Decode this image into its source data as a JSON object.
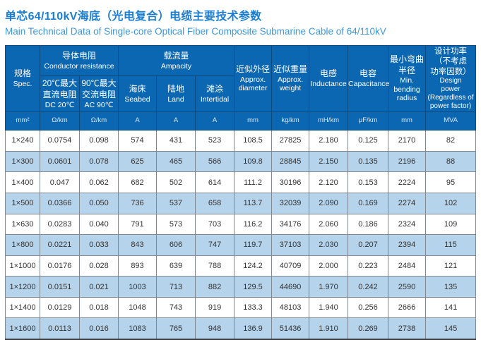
{
  "title": {
    "zh": "单芯64/110kV海底（光电复合）电缆主要技术参数",
    "en": "Main Technical Data of Single-core Optical Fiber Composite Submarine Cable of 64/110kV"
  },
  "colors": {
    "header_bg": "#0c67b2",
    "header_border": "#0d4a80",
    "alt_row_bg": "#b5d3eb",
    "title_zh": "#1b7ed2",
    "title_en": "#3d97dc"
  },
  "table": {
    "header": {
      "spec": {
        "zh": "规格",
        "en": "Spec."
      },
      "conductor_resistance": {
        "zh": "导体电阻",
        "en": "Conductor resistance"
      },
      "ampacity": {
        "zh": "载流量",
        "en": "Ampacity"
      },
      "dc_resistance": {
        "zh": "20℃最大\n直流电阻",
        "en": "DC 20℃"
      },
      "ac_resistance": {
        "zh": "90℃最大\n交流电阻",
        "en": "AC 90℃"
      },
      "seabed": {
        "zh": "海床",
        "en": "Seabed"
      },
      "land": {
        "zh": "陆地",
        "en": "Land"
      },
      "intertidal": {
        "zh": "滩涂",
        "en": "Intertidal"
      },
      "approx_diameter": {
        "zh": "近似外径",
        "en": "Approx.\ndiameter"
      },
      "approx_weight": {
        "zh": "近似重量",
        "en": "Approx.\nweight"
      },
      "inductance": {
        "zh": "电感",
        "en": "Inductance"
      },
      "capacitance": {
        "zh": "电容",
        "en": "Capacitance"
      },
      "min_bending_radius": {
        "zh": "最小弯曲\n半径",
        "en": "Min.\nbending\nradius"
      },
      "design_power": {
        "zh": "设计功率\n（不考虑\n功率因数）",
        "en": "Design\npower\n(Regardless of\npower factor)"
      }
    },
    "units": [
      "mm²",
      "Ω/km",
      "Ω/km",
      "A",
      "A",
      "A",
      "mm",
      "kg/km",
      "mH/km",
      "μF/km",
      "mm",
      "MVA"
    ],
    "rows": [
      [
        "1×240",
        "0.0754",
        "0.098",
        "574",
        "431",
        "523",
        "108.5",
        "27825",
        "2.180",
        "0.125",
        "2170",
        "82"
      ],
      [
        "1×300",
        "0.0601",
        "0.078",
        "625",
        "465",
        "566",
        "109.8",
        "28845",
        "2.150",
        "0.135",
        "2196",
        "88"
      ],
      [
        "1×400",
        "0.047",
        "0.062",
        "682",
        "502",
        "614",
        "111.2",
        "30196",
        "2.120",
        "0.153",
        "2224",
        "95"
      ],
      [
        "1×500",
        "0.0366",
        "0.050",
        "736",
        "537",
        "658",
        "113.7",
        "32039",
        "2.090",
        "0.169",
        "2274",
        "102"
      ],
      [
        "1×630",
        "0.0283",
        "0.040",
        "791",
        "573",
        "703",
        "116.2",
        "34176",
        "2.060",
        "0.186",
        "2324",
        "109"
      ],
      [
        "1×800",
        "0.0221",
        "0.033",
        "843",
        "606",
        "747",
        "119.7",
        "37103",
        "2.030",
        "0.207",
        "2394",
        "115"
      ],
      [
        "1×1000",
        "0.0176",
        "0.028",
        "893",
        "639",
        "788",
        "124.2",
        "40709",
        "2.000",
        "0.223",
        "2484",
        "121"
      ],
      [
        "1×1200",
        "0.0151",
        "0.021",
        "1003",
        "713",
        "882",
        "129.5",
        "44690",
        "1.970",
        "0.242",
        "2590",
        "135"
      ],
      [
        "1×1400",
        "0.0129",
        "0.018",
        "1048",
        "743",
        "919",
        "133.3",
        "48103",
        "1.940",
        "0.256",
        "2666",
        "141"
      ],
      [
        "1×1600",
        "0.0113",
        "0.016",
        "1083",
        "765",
        "948",
        "136.9",
        "51436",
        "1.910",
        "0.269",
        "2738",
        "145"
      ]
    ]
  }
}
